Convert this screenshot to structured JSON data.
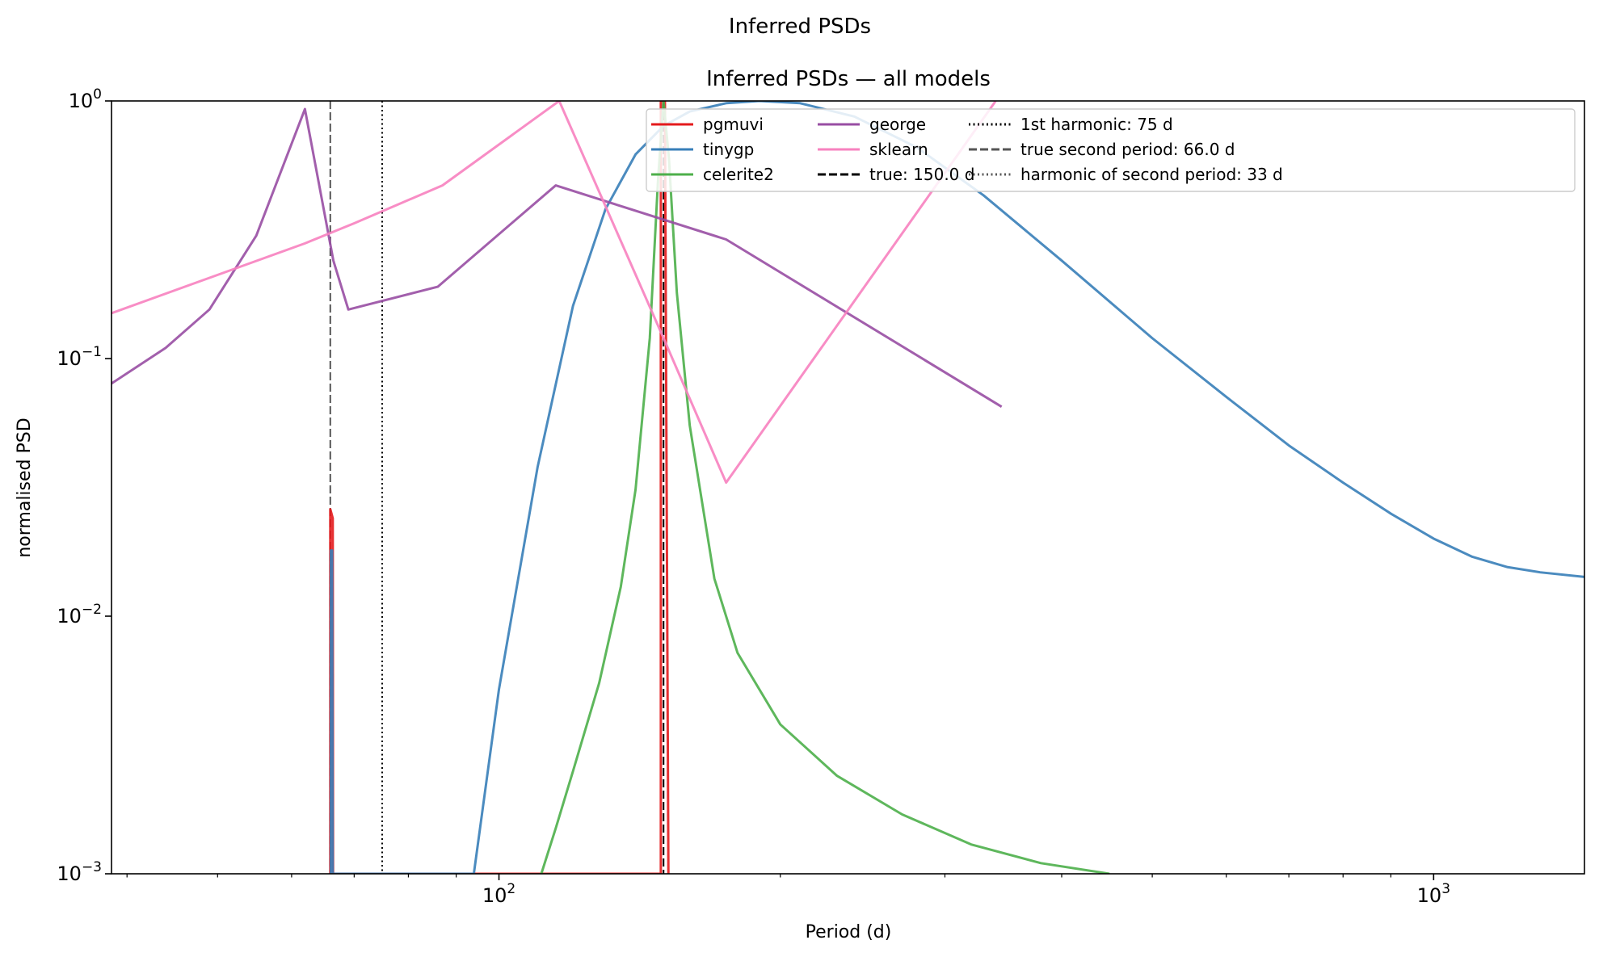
{
  "figure": {
    "suptitle": "Inferred PSDs"
  },
  "chart_data": {
    "type": "line",
    "title": "Inferred PSDs — all models",
    "xlabel": "Period (d)",
    "ylabel": "normalised PSD",
    "xscale": "log",
    "yscale": "log",
    "xlim": [
      38.5,
      1450
    ],
    "ylim": [
      0.001,
      1
    ],
    "grid": false,
    "legend_placement": "top-right",
    "x_major_ticks": [
      {
        "value": 100,
        "base": "10",
        "exp": "2"
      },
      {
        "value": 1000,
        "base": "10",
        "exp": "3"
      }
    ],
    "y_major_ticks": [
      {
        "value": 1,
        "base": "10",
        "exp": "0"
      },
      {
        "value": 0.1,
        "base": "10",
        "exp": "−1"
      },
      {
        "value": 0.01,
        "base": "10",
        "exp": "−2"
      },
      {
        "value": 0.001,
        "base": "10",
        "exp": "−3"
      }
    ],
    "x_minor_ticks": [
      40,
      50,
      60,
      70,
      80,
      90,
      200,
      300,
      400,
      500,
      600,
      700,
      800,
      900
    ],
    "series": [
      {
        "name": "pgmuvi",
        "color": "#e41a1c",
        "points": [
          [
            66.0,
            0.001
          ],
          [
            66.0,
            0.026
          ],
          [
            66.4,
            0.024
          ],
          [
            66.45,
            0.001
          ],
          [
            66.5,
            0.001
          ],
          [
            149.0,
            0.001
          ],
          [
            149.0,
            1.0
          ],
          [
            150.5,
            1.0
          ],
          [
            151.8,
            0.001
          ]
        ]
      },
      {
        "name": "tinygp",
        "color": "#377eb8",
        "points": [
          [
            66.1,
            0.001
          ],
          [
            66.1,
            0.018
          ],
          [
            66.3,
            0.018
          ],
          [
            66.4,
            0.001
          ],
          [
            94,
            0.001
          ],
          [
            100,
            0.0052
          ],
          [
            110,
            0.038
          ],
          [
            120,
            0.16
          ],
          [
            130,
            0.38
          ],
          [
            140,
            0.62
          ],
          [
            150,
            0.8
          ],
          [
            160,
            0.91
          ],
          [
            175,
            0.98
          ],
          [
            190,
            1.0
          ],
          [
            210,
            0.98
          ],
          [
            240,
            0.87
          ],
          [
            280,
            0.66
          ],
          [
            330,
            0.43
          ],
          [
            400,
            0.24
          ],
          [
            500,
            0.12
          ],
          [
            600,
            0.071
          ],
          [
            700,
            0.046
          ],
          [
            800,
            0.033
          ],
          [
            900,
            0.025
          ],
          [
            1000,
            0.02
          ],
          [
            1100,
            0.017
          ],
          [
            1200,
            0.0155
          ],
          [
            1300,
            0.0148
          ],
          [
            1450,
            0.0142
          ]
        ]
      },
      {
        "name": "celerite2",
        "color": "#4daf4a",
        "points": [
          [
            111,
            0.001
          ],
          [
            115,
            0.0015
          ],
          [
            120,
            0.0025
          ],
          [
            128,
            0.0055
          ],
          [
            135,
            0.013
          ],
          [
            140,
            0.031
          ],
          [
            145,
            0.12
          ],
          [
            148,
            0.5
          ],
          [
            150,
            1.0
          ],
          [
            152,
            0.6
          ],
          [
            155,
            0.18
          ],
          [
            160,
            0.055
          ],
          [
            170,
            0.014
          ],
          [
            180,
            0.0072
          ],
          [
            200,
            0.0038
          ],
          [
            230,
            0.0024
          ],
          [
            270,
            0.0017
          ],
          [
            320,
            0.0013
          ],
          [
            380,
            0.0011
          ],
          [
            450,
            0.001
          ]
        ]
      },
      {
        "name": "george",
        "color": "#984ea3",
        "points": [
          [
            38.5,
            0.08
          ],
          [
            44,
            0.11
          ],
          [
            49,
            0.155
          ],
          [
            55,
            0.3
          ],
          [
            62,
            0.93
          ],
          [
            66.5,
            0.24
          ],
          [
            69,
            0.155
          ],
          [
            86,
            0.19
          ],
          [
            115,
            0.47
          ],
          [
            175,
            0.29
          ],
          [
            345,
            0.065
          ]
        ]
      },
      {
        "name": "sklearn",
        "color": "#f781bf",
        "points": [
          [
            38.5,
            0.15
          ],
          [
            62,
            0.28
          ],
          [
            70,
            0.335
          ],
          [
            87,
            0.47
          ],
          [
            116,
            1.0
          ],
          [
            150,
            0.12
          ],
          [
            175,
            0.033
          ],
          [
            340,
            1.0
          ]
        ]
      }
    ],
    "reference_lines": [
      {
        "name": "true: 150.0 d",
        "x": 150.0,
        "color": "#000000",
        "style": "dashed"
      },
      {
        "name": "1st harmonic: 75 d",
        "x": 75,
        "color": "#000000",
        "style": "dotted"
      },
      {
        "name": "true second period: 66.0 d",
        "x": 66.0,
        "color": "#555555",
        "style": "dashed"
      },
      {
        "name": "harmonic of second period: 33 d",
        "x": 33,
        "color": "#555555",
        "style": "dotted"
      }
    ]
  }
}
